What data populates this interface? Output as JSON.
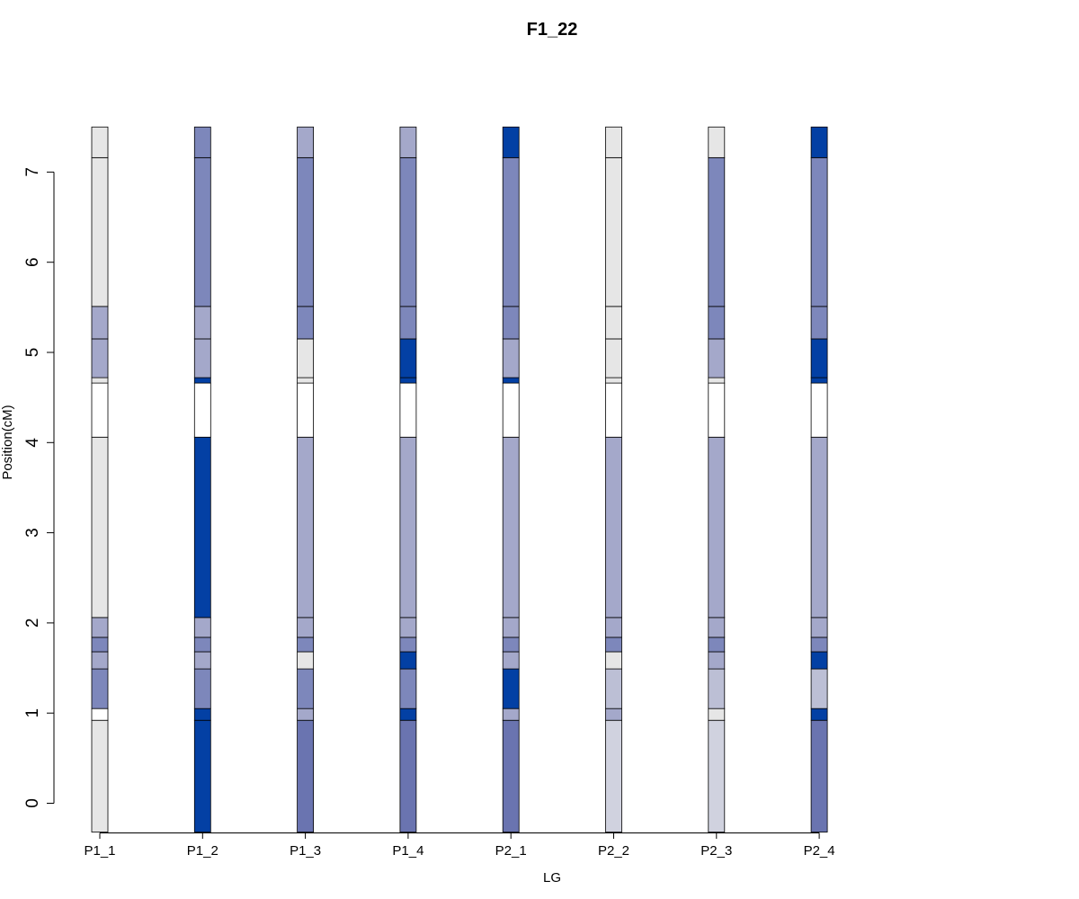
{
  "chart_data": {
    "type": "bar",
    "title": "F1_22",
    "xlabel": "LG",
    "ylabel": "Position(cM)",
    "ylim": [
      -0.32,
      7.5
    ],
    "yticks": [
      "0",
      "1",
      "2",
      "3",
      "4",
      "5",
      "6",
      "7"
    ],
    "categories": [
      "P1_1",
      "P1_2",
      "P1_3",
      "P1_4",
      "P2_1",
      "P2_2",
      "P2_3",
      "P2_4"
    ],
    "grid": false,
    "legend": "none",
    "palette": {
      "white": "#ffffff",
      "lightgray": "#e6e6e6",
      "gray": "#d0d2df",
      "mid": "#bcbfd5",
      "lavender": "#a4a8ca",
      "periwinkle": "#7d87bb",
      "slate": "#6a74b0",
      "blue": "#0340a4"
    },
    "boundaries": [
      -0.32,
      0.92,
      1.05,
      1.49,
      1.68,
      1.84,
      2.06,
      4.06,
      4.66,
      4.72,
      5.15,
      5.51,
      7.16,
      7.5
    ],
    "series": [
      {
        "name": "P1_1",
        "colors": [
          "lightgray",
          "white",
          "periwinkle",
          "lavender",
          "periwinkle",
          "lavender",
          "lightgray",
          "white",
          "lightgray",
          "lavender",
          "lavender",
          "lightgray",
          "lightgray"
        ]
      },
      {
        "name": "P1_2",
        "colors": [
          "blue",
          "blue",
          "periwinkle",
          "lavender",
          "periwinkle",
          "lavender",
          "blue",
          "white",
          "blue",
          "lavender",
          "lavender",
          "periwinkle",
          "periwinkle"
        ]
      },
      {
        "name": "P1_3",
        "colors": [
          "slate",
          "lavender",
          "periwinkle",
          "lightgray",
          "periwinkle",
          "lavender",
          "lavender",
          "white",
          "lightgray",
          "lightgray",
          "periwinkle",
          "periwinkle",
          "lavender"
        ]
      },
      {
        "name": "P1_4",
        "colors": [
          "slate",
          "blue",
          "periwinkle",
          "blue",
          "periwinkle",
          "lavender",
          "lavender",
          "white",
          "blue",
          "blue",
          "periwinkle",
          "periwinkle",
          "lavender"
        ]
      },
      {
        "name": "P2_1",
        "colors": [
          "slate",
          "lavender",
          "blue",
          "lavender",
          "periwinkle",
          "lavender",
          "lavender",
          "white",
          "blue",
          "lavender",
          "periwinkle",
          "periwinkle",
          "blue"
        ]
      },
      {
        "name": "P2_2",
        "colors": [
          "gray",
          "lavender",
          "mid",
          "lightgray",
          "periwinkle",
          "lavender",
          "lavender",
          "white",
          "lightgray",
          "lightgray",
          "lightgray",
          "lightgray",
          "lightgray"
        ]
      },
      {
        "name": "P2_3",
        "colors": [
          "gray",
          "lightgray",
          "mid",
          "lavender",
          "periwinkle",
          "lavender",
          "lavender",
          "white",
          "lightgray",
          "lavender",
          "periwinkle",
          "periwinkle",
          "lightgray"
        ]
      },
      {
        "name": "P2_4",
        "colors": [
          "slate",
          "blue",
          "mid",
          "blue",
          "periwinkle",
          "lavender",
          "lavender",
          "white",
          "blue",
          "blue",
          "periwinkle",
          "periwinkle",
          "blue"
        ]
      }
    ]
  }
}
